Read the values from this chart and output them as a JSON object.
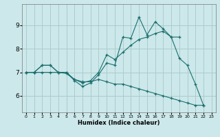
{
  "title": "",
  "xlabel": "Humidex (Indice chaleur)",
  "background_color": "#cce8ea",
  "grid_color": "#aacccc",
  "line_color": "#1a6e6e",
  "x_ticks": [
    0,
    1,
    2,
    3,
    4,
    5,
    6,
    7,
    8,
    9,
    10,
    11,
    12,
    13,
    14,
    15,
    16,
    17,
    18,
    19,
    20,
    21,
    22,
    23
  ],
  "y_ticks": [
    6,
    7,
    8,
    9
  ],
  "ylim": [
    5.3,
    9.9
  ],
  "xlim": [
    -0.5,
    23.5
  ],
  "series": [
    [
      7.0,
      7.0,
      7.3,
      7.3,
      7.0,
      7.0,
      6.65,
      6.4,
      6.55,
      6.9,
      7.4,
      7.3,
      8.5,
      8.45,
      9.35,
      8.6,
      9.15,
      8.85,
      8.5,
      7.6,
      7.3,
      6.5,
      5.6,
      null
    ],
    [
      7.0,
      7.0,
      7.3,
      7.3,
      7.0,
      7.0,
      6.7,
      6.55,
      6.65,
      7.0,
      7.75,
      7.55,
      7.85,
      8.15,
      8.4,
      8.5,
      8.65,
      8.75,
      8.5,
      8.5,
      null,
      null,
      null,
      null
    ],
    [
      7.0,
      7.0,
      7.0,
      7.0,
      7.0,
      6.95,
      6.7,
      6.6,
      6.6,
      6.7,
      6.6,
      6.5,
      6.5,
      6.4,
      6.3,
      6.2,
      6.1,
      6.0,
      5.9,
      5.8,
      5.7,
      5.6,
      5.6,
      null
    ]
  ]
}
